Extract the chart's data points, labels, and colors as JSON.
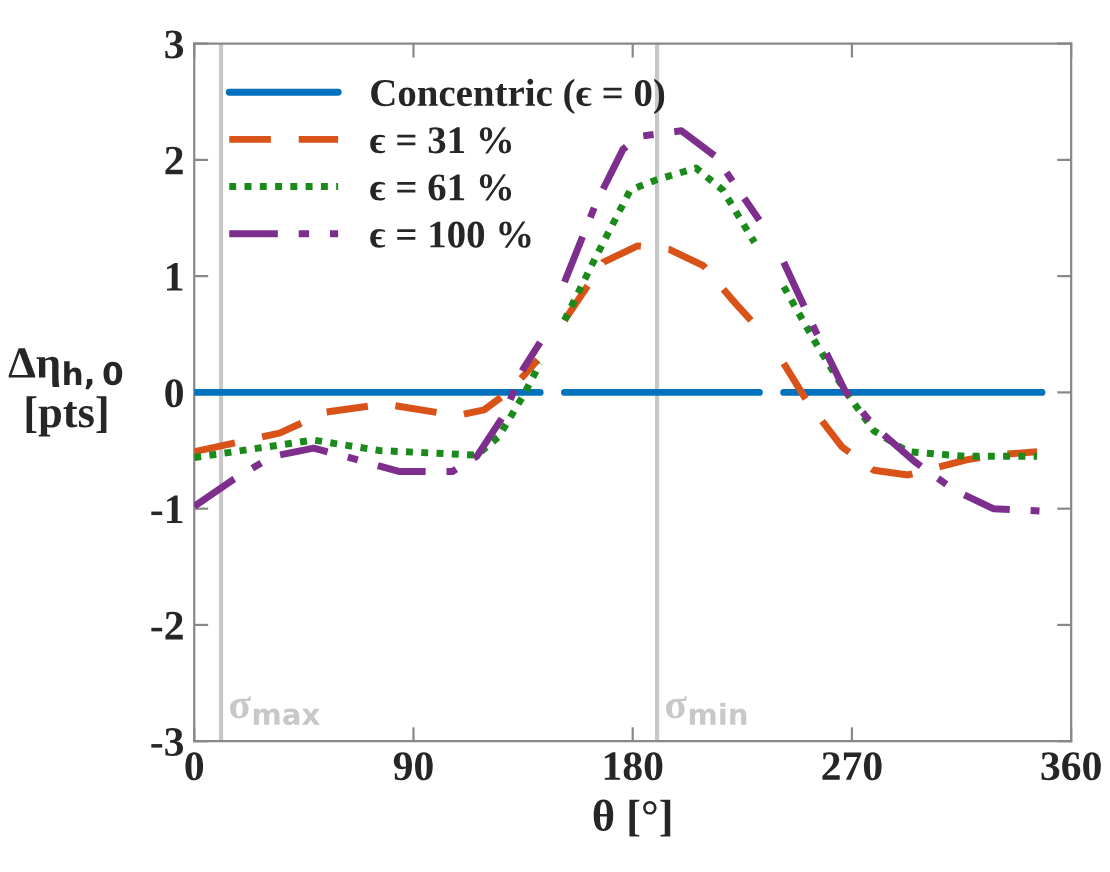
{
  "chart_data": {
    "type": "line",
    "xlabel": "θ [°]",
    "ylabel": "Δη$_{h,0}$\n[pts]",
    "xlim": [
      0,
      360
    ],
    "xticks": [
      0,
      90,
      180,
      270,
      360
    ],
    "ylim": [
      -3,
      3
    ],
    "yticks": [
      -3,
      -2,
      -1,
      0,
      1,
      2,
      3
    ],
    "grid": false,
    "legend": "top left",
    "series": [
      {
        "name": "Concentric (ϵ = 0)",
        "color": "#0072bd",
        "line_style": "solid",
        "x": [
          0,
          142,
          147,
          152,
          232,
          237,
          242,
          348
        ],
        "values": [
          0,
          0,
          null,
          0,
          0,
          null,
          0,
          0
        ]
      },
      {
        "name": "ϵ = 31 %",
        "color": "#d95319",
        "line_style": "dashed",
        "x": [
          0,
          35,
          54,
          78,
          108,
          119,
          130,
          141,
          147,
          152,
          168,
          182,
          195,
          209,
          222,
          232,
          237,
          242,
          252,
          266,
          279,
          293,
          317,
          328,
          346
        ],
        "values": [
          -0.51,
          -0.35,
          -0.17,
          -0.1,
          -0.2,
          -0.15,
          0.02,
          0.28,
          null,
          0.62,
          1.12,
          1.26,
          1.23,
          1.09,
          0.77,
          0.54,
          null,
          0.25,
          -0.09,
          -0.47,
          -0.67,
          -0.71,
          -0.58,
          -0.54,
          -0.51
        ]
      },
      {
        "name": "ϵ = 61 %",
        "color": "#1a8a1a",
        "line_style": "dotted",
        "x": [
          0,
          49,
          76,
          116,
          125,
          135,
          142,
          147,
          152,
          165,
          179,
          190,
          206,
          217,
          230,
          236,
          242,
          255,
          267,
          279,
          293,
          317,
          346
        ],
        "values": [
          -0.56,
          -0.41,
          -0.5,
          -0.54,
          -0.38,
          -0.03,
          0.25,
          null,
          0.62,
          1.17,
          1.74,
          1.83,
          1.93,
          1.74,
          1.29,
          null,
          0.91,
          0.43,
          0.02,
          -0.33,
          -0.51,
          -0.55,
          -0.55
        ]
      },
      {
        "name": "ϵ = 100 %",
        "color": "#7e2f8e",
        "line_style": "dashdot",
        "x": [
          0,
          16,
          32,
          49,
          62,
          84,
          106,
          116,
          127,
          135,
          142,
          147,
          152,
          165,
          176,
          182,
          200,
          214,
          232,
          237,
          242,
          255,
          267,
          279,
          296,
          312,
          328,
          347
        ],
        "values": [
          -0.98,
          -0.75,
          -0.55,
          -0.48,
          -0.55,
          -0.68,
          -0.68,
          -0.55,
          -0.2,
          0.2,
          0.43,
          null,
          0.95,
          1.63,
          2.09,
          2.2,
          2.25,
          2.03,
          1.48,
          null,
          1.12,
          0.53,
          0.02,
          -0.29,
          -0.6,
          -0.84,
          -1.0,
          -1.02
        ]
      }
    ],
    "ref_lines": [
      {
        "axis": "x",
        "value": 11,
        "label": "σ$_{max}$",
        "color": "#c8c8c8"
      },
      {
        "axis": "x",
        "value": 190,
        "label": "σ$_{min}$",
        "color": "#c8c8c8"
      }
    ]
  }
}
